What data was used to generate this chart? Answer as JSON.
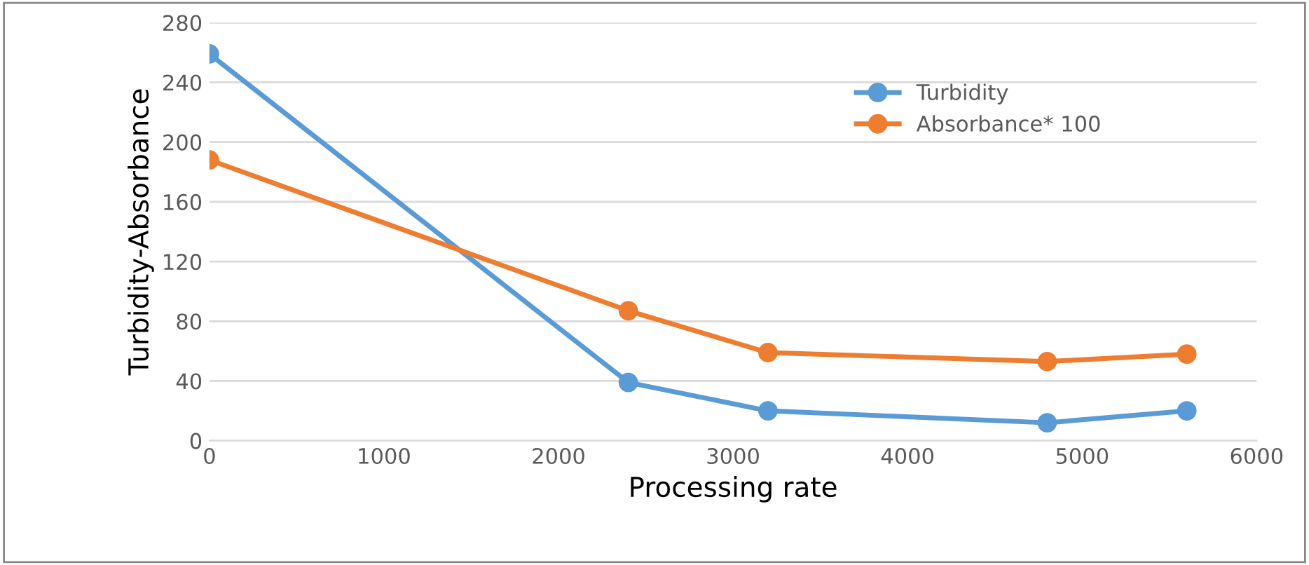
{
  "chart_data": {
    "type": "line",
    "xlabel": "Processing rate",
    "ylabel": "Turbidity-Absorbance",
    "x": [
      0,
      2400,
      3200,
      4800,
      5600
    ],
    "series": [
      {
        "name": "Turbidity",
        "color": "#5b9bd5",
        "values": [
          259,
          39,
          20,
          12,
          20
        ]
      },
      {
        "name": "Absorbance* 100",
        "color": "#ed7d31",
        "values": [
          188,
          87,
          59,
          53,
          58
        ]
      }
    ],
    "xlim": [
      0,
      6000
    ],
    "xticks": [
      0,
      1000,
      2000,
      3000,
      4000,
      5000,
      6000
    ],
    "ylim": [
      0,
      280
    ],
    "yticks": [
      0,
      40,
      80,
      120,
      160,
      200,
      240,
      280
    ],
    "grid": "y",
    "legend": "top right",
    "marker": "circle",
    "line_style": "solid"
  }
}
